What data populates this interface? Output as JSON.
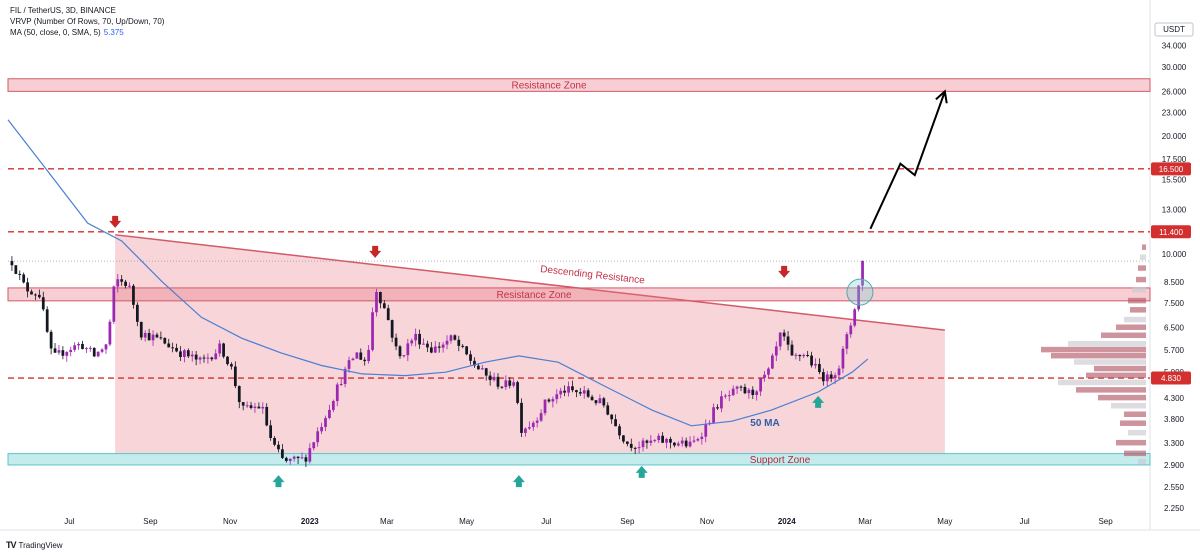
{
  "header": {
    "symbol_line": "FIL / TetherUS, 3D, BINANCE",
    "vrvp_line": "VRVP (Number Of Rows, 70, Up/Down, 70)",
    "ma_line": "MA (50, close, 0, SMA, 5)",
    "ma_value": "5.375"
  },
  "footer": {
    "brand": "TradingView",
    "logo_icon": "tradingview-logo-icon"
  },
  "colors": {
    "up": "#9c27b0",
    "down": "#131722",
    "ma": "#4a7fd4",
    "resistance_zone": "#e57382",
    "support_zone": "#7fd4d8",
    "dashed": "#d32f2f",
    "arrow_down": "#c62828",
    "arrow_up": "#26a69a",
    "badge": "#d32f2f"
  },
  "chart_data": {
    "type": "candlestick",
    "y_scale": "log",
    "currency_label": "USDT",
    "ylim": [
      2.2,
      40
    ],
    "y_ticks": [
      "34.000",
      "30.000",
      "26.000",
      "23.000",
      "20.000",
      "17.500",
      "15.500",
      "13.000",
      "10.000",
      "8.500",
      "7.500",
      "6.500",
      "5.700",
      "5.000",
      "4.300",
      "3.800",
      "3.300",
      "2.900",
      "2.550",
      "2.250"
    ],
    "x_ticks": [
      {
        "label": "Jul",
        "date": "2022-07-01"
      },
      {
        "label": "Sep",
        "date": "2022-09-01"
      },
      {
        "label": "Nov",
        "date": "2022-11-01"
      },
      {
        "label": "2023",
        "date": "2023-01-01"
      },
      {
        "label": "Mar",
        "date": "2023-03-01"
      },
      {
        "label": "May",
        "date": "2023-05-01"
      },
      {
        "label": "Jul",
        "date": "2023-07-01"
      },
      {
        "label": "Sep",
        "date": "2023-09-01"
      },
      {
        "label": "Nov",
        "date": "2023-11-01"
      },
      {
        "label": "2024",
        "date": "2024-01-01"
      },
      {
        "label": "Mar",
        "date": "2024-03-01"
      },
      {
        "label": "May",
        "date": "2024-05-01"
      },
      {
        "label": "Jul",
        "date": "2024-07-01"
      },
      {
        "label": "Sep",
        "date": "2024-09-01"
      }
    ],
    "xlim": [
      "2022-05-15",
      "2024-10-05"
    ],
    "price_waypoints": [
      [
        "2022-05-18",
        9.6
      ],
      [
        "2022-05-28",
        8.2
      ],
      [
        "2022-06-08",
        7.9
      ],
      [
        "2022-06-18",
        5.4
      ],
      [
        "2022-06-28",
        5.7
      ],
      [
        "2022-07-10",
        5.9
      ],
      [
        "2022-07-20",
        5.5
      ],
      [
        "2022-07-30",
        5.9
      ],
      [
        "2022-08-05",
        8.6
      ],
      [
        "2022-08-15",
        8.4
      ],
      [
        "2022-08-25",
        6.3
      ],
      [
        "2022-09-10",
        6.0
      ],
      [
        "2022-09-25",
        5.6
      ],
      [
        "2022-10-10",
        5.3
      ],
      [
        "2022-10-25",
        5.8
      ],
      [
        "2022-11-02",
        5.1
      ],
      [
        "2022-11-10",
        4.0
      ],
      [
        "2022-11-25",
        4.1
      ],
      [
        "2022-12-03",
        3.3
      ],
      [
        "2022-12-12",
        2.95
      ],
      [
        "2022-12-28",
        3.0
      ],
      [
        "2023-01-10",
        3.7
      ],
      [
        "2023-01-25",
        4.8
      ],
      [
        "2023-02-05",
        5.6
      ],
      [
        "2023-02-14",
        5.3
      ],
      [
        "2023-02-20",
        8.3
      ],
      [
        "2023-03-01",
        7.0
      ],
      [
        "2023-03-10",
        5.4
      ],
      [
        "2023-03-22",
        6.2
      ],
      [
        "2023-04-05",
        5.7
      ],
      [
        "2023-04-20",
        6.1
      ],
      [
        "2023-05-01",
        5.5
      ],
      [
        "2023-05-15",
        4.9
      ],
      [
        "2023-05-30",
        4.6
      ],
      [
        "2023-06-06",
        4.8
      ],
      [
        "2023-06-12",
        3.6
      ],
      [
        "2023-06-20",
        3.7
      ],
      [
        "2023-07-01",
        4.2
      ],
      [
        "2023-07-15",
        4.5
      ],
      [
        "2023-07-30",
        4.4
      ],
      [
        "2023-08-15",
        4.1
      ],
      [
        "2023-08-22",
        3.7
      ],
      [
        "2023-09-01",
        3.3
      ],
      [
        "2023-09-12",
        3.25
      ],
      [
        "2023-09-25",
        3.35
      ],
      [
        "2023-10-10",
        3.3
      ],
      [
        "2023-10-20",
        3.25
      ],
      [
        "2023-10-30",
        3.6
      ],
      [
        "2023-11-10",
        4.2
      ],
      [
        "2023-11-25",
        4.5
      ],
      [
        "2023-12-05",
        4.4
      ],
      [
        "2023-12-18",
        5.0
      ],
      [
        "2023-12-28",
        6.3
      ],
      [
        "2024-01-05",
        5.4
      ],
      [
        "2024-01-15",
        5.6
      ],
      [
        "2024-01-25",
        5.0
      ],
      [
        "2024-02-01",
        4.8
      ],
      [
        "2024-02-10",
        5.2
      ],
      [
        "2024-02-20",
        6.8
      ],
      [
        "2024-02-25",
        8.3
      ],
      [
        "2024-03-01",
        10.5
      ]
    ],
    "ma_waypoints": [
      [
        "2022-05-15",
        22.0
      ],
      [
        "2022-06-10",
        17.0
      ],
      [
        "2022-07-15",
        12.0
      ],
      [
        "2022-08-10",
        10.8
      ],
      [
        "2022-09-10",
        8.5
      ],
      [
        "2022-10-10",
        6.9
      ],
      [
        "2022-11-10",
        6.1
      ],
      [
        "2022-12-10",
        5.6
      ],
      [
        "2023-01-10",
        5.2
      ],
      [
        "2023-02-10",
        4.95
      ],
      [
        "2023-03-15",
        4.9
      ],
      [
        "2023-04-15",
        5.0
      ],
      [
        "2023-05-15",
        5.3
      ],
      [
        "2023-06-10",
        5.5
      ],
      [
        "2023-07-10",
        5.3
      ],
      [
        "2023-08-15",
        4.6
      ],
      [
        "2023-09-20",
        4.0
      ],
      [
        "2023-10-20",
        3.65
      ],
      [
        "2023-11-20",
        3.75
      ],
      [
        "2023-12-20",
        4.0
      ],
      [
        "2024-01-25",
        4.45
      ],
      [
        "2024-02-20",
        5.0
      ],
      [
        "2024-03-03",
        5.4
      ]
    ],
    "resistance_zones": [
      {
        "label": "Resistance Zone",
        "low": 26.0,
        "high": 28.0
      },
      {
        "label": "Resistance Zone",
        "low": 7.6,
        "high": 8.2
      }
    ],
    "support_zone": {
      "label": "Support Zone",
      "low": 2.9,
      "high": 3.1
    },
    "triangle": {
      "start_date": "2022-08-05",
      "end_date": "2024-05-01",
      "top_start": 11.2,
      "top_end": 6.4,
      "bottom": 3.1
    },
    "descending_resistance_label": "Descending Resistance",
    "ma_label": "50 MA",
    "dashed_levels": [
      {
        "value": 16.5,
        "label": "16.500"
      },
      {
        "value": 11.4,
        "label": "11.400"
      },
      {
        "value": 4.83,
        "label": "4.830"
      }
    ],
    "current_price_line": 9.6,
    "down_arrows": [
      {
        "date": "2022-08-05",
        "price": 11.8
      },
      {
        "date": "2023-02-20",
        "price": 9.9
      },
      {
        "date": "2023-12-30",
        "price": 8.8
      }
    ],
    "up_arrows": [
      {
        "date": "2022-12-08",
        "price": 2.7
      },
      {
        "date": "2023-06-10",
        "price": 2.7
      },
      {
        "date": "2023-09-12",
        "price": 2.85
      },
      {
        "date": "2024-01-25",
        "price": 4.3
      }
    ],
    "projection": [
      [
        "2024-03-05",
        11.6
      ],
      [
        "2024-03-28",
        17.0
      ],
      [
        "2024-04-08",
        15.9
      ],
      [
        "2024-05-01",
        26.0
      ]
    ],
    "circle_marker": {
      "date": "2024-02-26",
      "price": 8.0
    }
  }
}
